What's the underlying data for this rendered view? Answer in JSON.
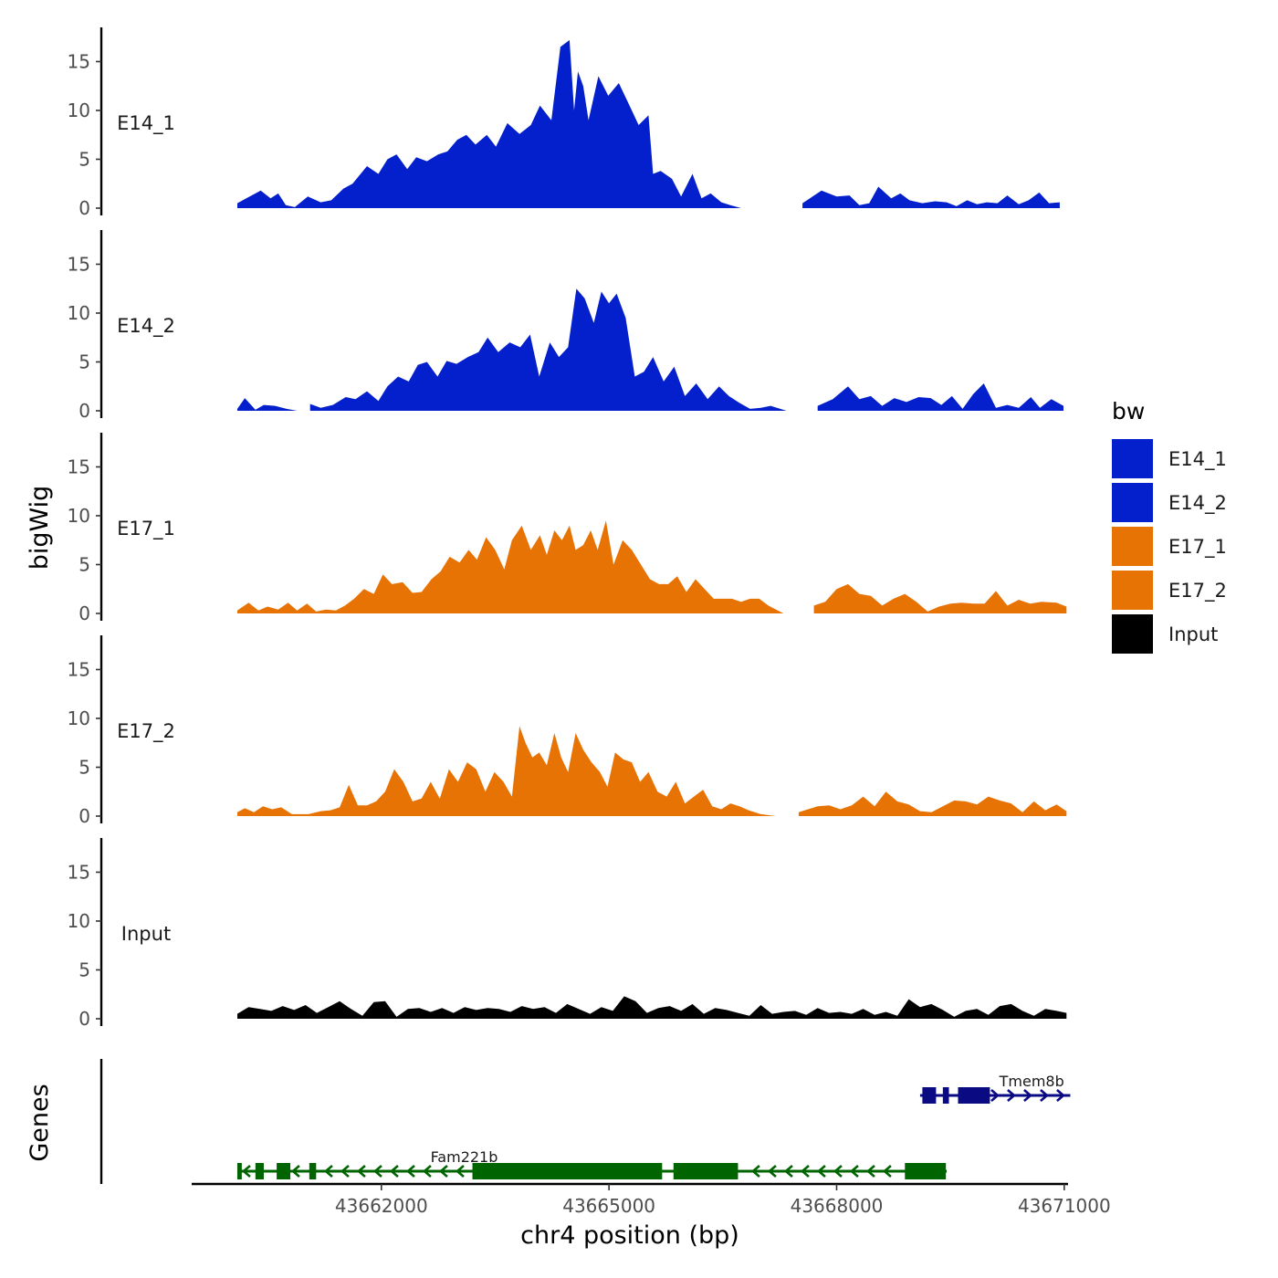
{
  "chart_data": {
    "type": "area",
    "title": "",
    "ylabel": "bigWig",
    "genes_label": "Genes",
    "xlabel": "chr4 position (bp)",
    "xlim": [
      43659500,
      43671050
    ],
    "x_ticks": [
      43662000,
      43665000,
      43668000,
      43671000
    ],
    "x_tick_labels": [
      "43662000",
      "43665000",
      "43668000",
      "43671000"
    ],
    "ylim": [
      0,
      18.5
    ],
    "y_ticks": [
      0,
      5,
      10,
      15
    ],
    "y_tick_labels": [
      "0",
      "5",
      "10",
      "15"
    ],
    "legend": {
      "title": "bw",
      "position": "right",
      "entries": [
        {
          "label": "E14_1",
          "color": "#0320CC"
        },
        {
          "label": "E14_2",
          "color": "#0320CC"
        },
        {
          "label": "E17_1",
          "color": "#E87305"
        },
        {
          "label": "E17_2",
          "color": "#E87305"
        },
        {
          "label": "Input",
          "color": "#000000"
        }
      ]
    },
    "tracks": [
      {
        "name": "E14_1",
        "color": "#0320CC",
        "x": [
          43660101,
          43660220,
          43660410,
          43660540,
          43660640,
          43660740,
          43660860,
          43661030,
          43661200,
          43661340,
          43661500,
          43661620,
          43661810,
          43661960,
          43662080,
          43662200,
          43662340,
          43662460,
          43662600,
          43662750,
          43662870,
          43663000,
          43663120,
          43663240,
          43663390,
          43663510,
          43663660,
          43663820,
          43663970,
          43664090,
          43664240,
          43664360,
          43664480,
          43664540,
          43664590,
          43664660,
          43664730,
          43664860,
          43664990,
          43665130,
          43665270,
          43665390,
          43665520,
          43665580,
          43665680,
          43665830,
          43665950,
          43666100,
          43666220,
          43666340,
          43666480,
          43666600,
          43666740,
          43666860,
          43666960,
          43667130,
          43667550,
          43667800,
          43668000,
          43668170,
          43668300,
          43668430,
          43668550,
          43668720,
          43668840,
          43668960,
          43669130,
          43669300,
          43669450,
          43669580,
          43669720,
          43669850,
          43669980,
          43670120,
          43670250,
          43670400,
          43670530,
          43670670,
          43670800,
          43670940
        ],
        "y": [
          0.5,
          1,
          1.8,
          1,
          1.5,
          0.3,
          0.1,
          1.2,
          0.6,
          0.8,
          2,
          2.5,
          4.3,
          3.5,
          5,
          5.5,
          4,
          5.2,
          4.8,
          5.5,
          5.8,
          7,
          7.5,
          6.5,
          7.5,
          6.3,
          8.7,
          7.6,
          8.5,
          10.5,
          9,
          16.5,
          17.2,
          10,
          14,
          12.5,
          9,
          13.5,
          11.5,
          12.8,
          10.5,
          8.5,
          9.5,
          3.5,
          3.8,
          3,
          1.2,
          3.5,
          1,
          1.5,
          0.6,
          0.3,
          0,
          0,
          0,
          0,
          0.5,
          1.8,
          1.2,
          1.3,
          0.3,
          0.5,
          2.2,
          1,
          1.5,
          0.8,
          0.5,
          0.7,
          0.6,
          0.2,
          0.8,
          0.4,
          0.6,
          0.5,
          1.3,
          0.4,
          0.8,
          1.6,
          0.5,
          0.6
        ]
      },
      {
        "name": "E14_2",
        "color": "#0320CC",
        "x": [
          43660101,
          43660200,
          43660340,
          43660450,
          43660600,
          43660750,
          43660890,
          43661060,
          43661200,
          43661360,
          43661530,
          43661660,
          43661810,
          43661960,
          43662080,
          43662220,
          43662360,
          43662480,
          43662600,
          43662740,
          43662860,
          43662990,
          43663140,
          43663280,
          43663400,
          43663540,
          43663690,
          43663830,
          43663960,
          43664080,
          43664220,
          43664340,
          43664460,
          43664570,
          43664680,
          43664800,
          43664900,
          43665000,
          43665100,
          43665220,
          43665340,
          43665460,
          43665580,
          43665720,
          43665860,
          43666000,
          43666150,
          43666300,
          43666450,
          43666580,
          43666720,
          43666860,
          43667000,
          43667130,
          43667340,
          43667550,
          43667750,
          43667950,
          43668150,
          43668300,
          43668450,
          43668600,
          43668760,
          43668920,
          43669080,
          43669240,
          43669380,
          43669520,
          43669660,
          43669800,
          43669940,
          43670100,
          43670250,
          43670400,
          43670560,
          43670680,
          43670830,
          43670990
        ],
        "y": [
          0.2,
          1.3,
          0.1,
          0.6,
          0.5,
          0.2,
          0,
          0.7,
          0.3,
          0.6,
          1.4,
          1.2,
          2,
          1,
          2.5,
          3.5,
          3,
          4.7,
          5,
          3.5,
          5.1,
          4.8,
          5.5,
          6,
          7.5,
          6,
          7,
          6.5,
          7.8,
          3.5,
          7,
          5.5,
          6.5,
          12.5,
          11.5,
          9,
          12.2,
          11,
          12,
          9.5,
          3.5,
          4,
          5.5,
          3,
          4.5,
          1.5,
          2.8,
          1.2,
          2.5,
          1.5,
          0.8,
          0.2,
          0.3,
          0.5,
          0,
          0,
          0.5,
          1.2,
          2.5,
          1.2,
          1.5,
          0.5,
          1.3,
          0.9,
          1.4,
          1.3,
          0.6,
          1.5,
          0.2,
          1.7,
          2.8,
          0.3,
          0.6,
          0.3,
          1.4,
          0.3,
          1.2,
          0.5
        ]
      },
      {
        "name": "E17_1",
        "color": "#E87305",
        "x": [
          43660101,
          43660250,
          43660380,
          43660500,
          43660640,
          43660770,
          43660890,
          43661020,
          43661140,
          43661270,
          43661400,
          43661520,
          43661640,
          43661770,
          43661900,
          43662020,
          43662140,
          43662280,
          43662410,
          43662530,
          43662660,
          43662780,
          43662900,
          43663030,
          43663150,
          43663260,
          43663380,
          43663500,
          43663620,
          43663720,
          43663850,
          43663970,
          43664090,
          43664180,
          43664280,
          43664380,
          43664480,
          43664560,
          43664660,
          43664760,
          43664850,
          43664960,
          43665060,
          43665180,
          43665300,
          43665420,
          43665540,
          43665660,
          43665780,
          43665900,
          43666020,
          43666140,
          43666260,
          43666380,
          43666500,
          43666620,
          43666740,
          43666860,
          43666980,
          43667100,
          43667300,
          43667500,
          43667700,
          43667850,
          43668000,
          43668150,
          43668300,
          43668450,
          43668600,
          43668750,
          43668900,
          43669050,
          43669200,
          43669350,
          43669500,
          43669650,
          43669800,
          43669950,
          43670100,
          43670250,
          43670400,
          43670550,
          43670700,
          43670900,
          43671030
        ],
        "y": [
          0.3,
          1.1,
          0.3,
          0.7,
          0.4,
          1.1,
          0.3,
          1,
          0.2,
          0.4,
          0.3,
          0.8,
          1.5,
          2.5,
          2,
          4,
          3,
          3.2,
          2.1,
          2.2,
          3.5,
          4.3,
          5.8,
          5.2,
          6.5,
          5.5,
          7.8,
          6.5,
          4.5,
          7.5,
          9,
          6.5,
          8,
          6,
          8.5,
          7.5,
          9,
          6.5,
          7,
          8.5,
          6.5,
          9.5,
          5,
          7.5,
          6.5,
          5,
          3.5,
          3,
          3,
          3.8,
          2.2,
          3.5,
          2.5,
          1.5,
          1.5,
          1.5,
          1.2,
          1.5,
          1.5,
          0.8,
          0,
          0,
          0.8,
          1.2,
          2.5,
          3,
          2,
          1.8,
          0.8,
          1.5,
          2,
          1.2,
          0.2,
          0.7,
          1,
          1.1,
          1,
          1,
          2.3,
          0.8,
          1.4,
          1,
          1.2,
          1.1,
          0.7
        ]
      },
      {
        "name": "E17_2",
        "color": "#E87305",
        "x": [
          43660101,
          43660200,
          43660320,
          43660440,
          43660560,
          43660680,
          43660820,
          43661040,
          43661200,
          43661330,
          43661450,
          43661570,
          43661690,
          43661810,
          43661930,
          43662050,
          43662170,
          43662290,
          43662410,
          43662530,
          43662650,
          43662770,
          43662890,
          43663010,
          43663130,
          43663250,
          43663370,
          43663490,
          43663610,
          43663720,
          43663820,
          43663900,
          43663990,
          43664080,
          43664180,
          43664280,
          43664370,
          43664460,
          43664560,
          43664660,
          43664770,
          43664880,
          43664980,
          43665080,
          43665190,
          43665300,
          43665410,
          43665520,
          43665640,
          43665760,
          43665880,
          43666000,
          43666120,
          43666240,
          43666360,
          43666480,
          43666600,
          43666720,
          43666840,
          43667000,
          43667200,
          43667500,
          43667750,
          43667900,
          43668050,
          43668200,
          43668350,
          43668500,
          43668650,
          43668800,
          43668950,
          43669100,
          43669250,
          43669400,
          43669550,
          43669700,
          43669850,
          43670000,
          43670150,
          43670300,
          43670450,
          43670600,
          43670750,
          43670900,
          43671030
        ],
        "y": [
          0.4,
          0.8,
          0.4,
          1,
          0.7,
          0.9,
          0.2,
          0.2,
          0.5,
          0.6,
          0.9,
          3.2,
          1.1,
          1.1,
          1.5,
          2.5,
          4.8,
          3.5,
          1.5,
          1.8,
          3.5,
          1.8,
          4.8,
          3.5,
          5.5,
          4.8,
          2.5,
          4.5,
          3.5,
          2,
          9.2,
          7.5,
          6,
          6.5,
          5.2,
          8.5,
          6,
          4.5,
          8.5,
          6.8,
          5.5,
          4.5,
          3,
          6.5,
          5.8,
          5.5,
          3.5,
          4.5,
          2.5,
          2,
          3.5,
          1.3,
          2,
          2.7,
          1,
          0.7,
          1.3,
          1,
          0.6,
          0.2,
          0,
          0.4,
          1,
          1.1,
          0.7,
          1.1,
          2,
          1,
          2.5,
          1.5,
          1.2,
          0.5,
          0.4,
          1,
          1.6,
          1.5,
          1.2,
          2,
          1.6,
          1.3,
          0.4,
          1.5,
          0.6,
          1.2,
          0.5
        ]
      },
      {
        "name": "Input",
        "color": "#000000",
        "x": [
          43660101,
          43660250,
          43660400,
          43660550,
          43660700,
          43660850,
          43661000,
          43661150,
          43661300,
          43661450,
          43661600,
          43661750,
          43661900,
          43662050,
          43662200,
          43662350,
          43662500,
          43662650,
          43662800,
          43662950,
          43663100,
          43663250,
          43663400,
          43663550,
          43663700,
          43663850,
          43664000,
          43664150,
          43664300,
          43664450,
          43664600,
          43664750,
          43664900,
          43665050,
          43665200,
          43665350,
          43665500,
          43665650,
          43665800,
          43665950,
          43666100,
          43666250,
          43666400,
          43666550,
          43666700,
          43666850,
          43667000,
          43667150,
          43667300,
          43667450,
          43667600,
          43667750,
          43667900,
          43668050,
          43668200,
          43668350,
          43668500,
          43668650,
          43668800,
          43668950,
          43669100,
          43669250,
          43669400,
          43669550,
          43669700,
          43669850,
          43670000,
          43670150,
          43670300,
          43670450,
          43670600,
          43670750,
          43670900,
          43671030
        ],
        "y": [
          0.5,
          1.2,
          1,
          0.8,
          1.3,
          0.9,
          1.4,
          0.6,
          1.2,
          1.8,
          1,
          0.3,
          1.7,
          1.8,
          0.2,
          1,
          1.1,
          0.7,
          1.1,
          0.6,
          1.2,
          0.9,
          1.1,
          1,
          0.7,
          1.3,
          1,
          1.2,
          0.6,
          1.5,
          1,
          0.5,
          1.2,
          0.8,
          2.3,
          1.8,
          0.6,
          1.1,
          1.3,
          0.8,
          1.5,
          0.5,
          1.1,
          0.9,
          0.6,
          0.3,
          1.4,
          0.5,
          0.7,
          0.8,
          0.4,
          1.1,
          0.6,
          0.7,
          0.5,
          1,
          0.4,
          0.7,
          0.3,
          2,
          1.2,
          1.5,
          0.9,
          0.2,
          0.8,
          1,
          0.4,
          1.3,
          1.5,
          0.8,
          0.3,
          1,
          0.8,
          0.6
        ]
      }
    ],
    "genes": [
      {
        "name": "Tmem8b",
        "color": "#0A0A82",
        "strand": "+",
        "start": 43669100,
        "end": 43671080,
        "exons": [
          [
            43669130,
            43669310
          ],
          [
            43669400,
            43669480
          ],
          [
            43669600,
            43670020
          ]
        ]
      },
      {
        "name": "Fam221b",
        "color": "#006400",
        "strand": "-",
        "start": 43660101,
        "end": 43669450,
        "exons": [
          [
            43660101,
            43660160
          ],
          [
            43660340,
            43660450
          ],
          [
            43660620,
            43660800
          ],
          [
            43661050,
            43661140
          ],
          [
            43663200,
            43665700
          ],
          [
            43665850,
            43666700
          ],
          [
            43668900,
            43669440
          ]
        ]
      }
    ]
  }
}
